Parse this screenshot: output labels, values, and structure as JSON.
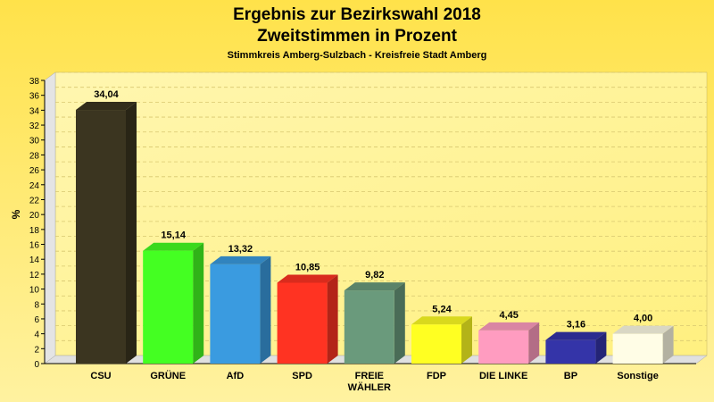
{
  "chart_data": {
    "type": "bar",
    "title": "Ergebnis zur Bezirkswahl 2018",
    "subtitle": "Zweitstimmen in Prozent",
    "subsubtitle": "Stimmkreis Amberg-Sulzbach - Kreisfreie Stadt Amberg",
    "xlabel": "",
    "ylabel": "%",
    "ylim": [
      0,
      38
    ],
    "yticks": [
      0,
      2,
      4,
      6,
      8,
      10,
      12,
      14,
      16,
      18,
      20,
      22,
      24,
      26,
      28,
      30,
      32,
      34,
      36,
      38
    ],
    "grid": true,
    "categories": [
      "CSU",
      "GRÜNE",
      "AfD",
      "SPD",
      "FREIE WÄHLER",
      "FDP",
      "DIE LINKE",
      "BP",
      "Sonstige"
    ],
    "values": [
      34.04,
      15.14,
      13.32,
      10.85,
      9.82,
      5.24,
      4.45,
      3.16,
      4.0
    ],
    "value_labels": [
      "34,04",
      "15,14",
      "13,32",
      "10,85",
      "9,82",
      "5,24",
      "4,45",
      "3,16",
      "4,00"
    ],
    "colors": [
      "#3b3520",
      "#44ff22",
      "#3a9be0",
      "#ff3322",
      "#6a9a7c",
      "#ffff22",
      "#ff9cc0",
      "#3434a8",
      "#fffde6"
    ]
  }
}
